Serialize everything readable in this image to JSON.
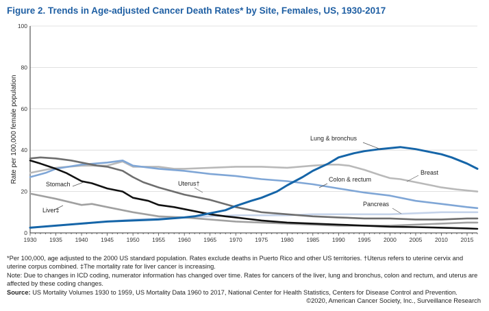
{
  "chart_data": {
    "type": "line",
    "title": "Figure 2. Trends in Age-adjusted Cancer Death Rates* by Site, Females, US, 1930-2017",
    "ylabel": "Rate per 100,000 female population",
    "xlabel": "",
    "ylim": [
      0,
      100
    ],
    "xlim": [
      1930,
      2017
    ],
    "y_ticks": [
      "0",
      "20",
      "40",
      "60",
      "80",
      "100"
    ],
    "x_ticks": [
      "1930",
      "1935",
      "1940",
      "1945",
      "1950",
      "1955",
      "1960",
      "1965",
      "1970",
      "1975",
      "1980",
      "1985",
      "1990",
      "1995",
      "2000",
      "2005",
      "2010",
      "2015"
    ],
    "grid": "horizontal",
    "colors": {
      "lung": "#1565a8",
      "breast": "#b9b9b9",
      "colon": "#7fa6d6",
      "pancreas": "#c5d3ea",
      "uterus": "#6e6e6e",
      "stomach": "#111111",
      "liver": "#a0a0a0",
      "gridline": "#d6d6d6",
      "title": "#1f5fa3"
    },
    "series": [
      {
        "name": "Lung & bronchus",
        "key": "lung",
        "x": [
          1930,
          1935,
          1940,
          1945,
          1950,
          1955,
          1960,
          1962,
          1965,
          1968,
          1970,
          1973,
          1975,
          1978,
          1980,
          1983,
          1985,
          1988,
          1990,
          1993,
          1995,
          1998,
          2000,
          2002,
          2005,
          2008,
          2010,
          2012,
          2015,
          2017
        ],
        "y": [
          2.5,
          3.5,
          4.5,
          5.5,
          6,
          6.5,
          7.5,
          8,
          9.5,
          11,
          13,
          15.5,
          17,
          20,
          23,
          27,
          30,
          33.5,
          36.5,
          38.5,
          39.5,
          40.5,
          41,
          41.5,
          40.5,
          39,
          38,
          36.5,
          33.5,
          31
        ]
      },
      {
        "name": "Breast",
        "key": "breast",
        "x": [
          1930,
          1932,
          1935,
          1940,
          1945,
          1948,
          1950,
          1955,
          1958,
          1960,
          1965,
          1970,
          1975,
          1980,
          1985,
          1988,
          1990,
          1992,
          1995,
          1998,
          2000,
          2002,
          2005,
          2008,
          2010,
          2013,
          2015,
          2017
        ],
        "y": [
          29,
          30,
          31.5,
          32.5,
          32.5,
          34.5,
          32,
          32,
          31,
          31,
          31.5,
          32,
          32,
          31.5,
          32.5,
          33,
          33,
          32.5,
          30.5,
          28,
          26.5,
          26,
          24.5,
          23,
          22,
          21,
          20.5,
          20
        ]
      },
      {
        "name": "Colon & rectum",
        "key": "colon",
        "x": [
          1930,
          1933,
          1935,
          1940,
          1945,
          1948,
          1950,
          1955,
          1960,
          1965,
          1970,
          1975,
          1980,
          1985,
          1990,
          1995,
          2000,
          2005,
          2010,
          2015,
          2017
        ],
        "y": [
          27,
          29,
          31,
          33,
          34,
          35,
          32.5,
          31,
          30,
          28.5,
          27.5,
          26,
          25,
          23.5,
          21.5,
          19.5,
          18,
          15.5,
          14,
          12.5,
          12
        ]
      },
      {
        "name": "Pancreas",
        "key": "pancreas",
        "x": [
          1930,
          1935,
          1940,
          1945,
          1950,
          1955,
          1960,
          1965,
          1970,
          1975,
          1980,
          1985,
          1990,
          1995,
          2000,
          2005,
          2010,
          2015,
          2017
        ],
        "y": [
          2.5,
          3.5,
          4.5,
          5.5,
          6.5,
          7,
          7.5,
          8,
          8.5,
          8.5,
          8.5,
          9,
          9,
          9,
          9,
          9.5,
          10,
          10,
          10
        ]
      },
      {
        "name": "Uterus",
        "key": "uterus",
        "x": [
          1930,
          1932,
          1935,
          1938,
          1940,
          1943,
          1945,
          1948,
          1950,
          1952,
          1955,
          1960,
          1965,
          1970,
          1975,
          1980,
          1985,
          1990,
          1995,
          2000,
          2005,
          2010,
          2015,
          2017
        ],
        "y": [
          36,
          36.5,
          36,
          35,
          34,
          32.5,
          32,
          30,
          27,
          24.5,
          22,
          18.5,
          16,
          12.5,
          10,
          9,
          8,
          7.5,
          7,
          7,
          6.5,
          6.5,
          7,
          7
        ]
      },
      {
        "name": "Stomach",
        "key": "stomach",
        "x": [
          1930,
          1932,
          1935,
          1937,
          1940,
          1942,
          1945,
          1948,
          1950,
          1953,
          1955,
          1958,
          1960,
          1963,
          1965,
          1968,
          1970,
          1975,
          1980,
          1985,
          1990,
          1995,
          2000,
          2005,
          2010,
          2015,
          2017
        ],
        "y": [
          35,
          33.5,
          31,
          29,
          25,
          24,
          21.5,
          20,
          17,
          15.5,
          13.5,
          12.5,
          11.5,
          10,
          9,
          8,
          7.5,
          6,
          5,
          4.5,
          4,
          3.5,
          3,
          2.8,
          2.5,
          2.2,
          2
        ]
      },
      {
        "name": "Liver",
        "key": "liver",
        "x": [
          1930,
          1932,
          1935,
          1940,
          1942,
          1945,
          1950,
          1955,
          1960,
          1965,
          1970,
          1975,
          1980,
          1985,
          1990,
          1995,
          2000,
          2005,
          2010,
          2015,
          2017
        ],
        "y": [
          19,
          18,
          16.5,
          13.5,
          14,
          12.5,
          10,
          8,
          7.5,
          6.5,
          5.5,
          5,
          4.5,
          4,
          3.5,
          3.5,
          3.5,
          4,
          4.5,
          5,
          5
        ]
      }
    ],
    "annotations": [
      {
        "key": "lung",
        "text": "Lung & bronchus"
      },
      {
        "key": "breast",
        "text": "Breast"
      },
      {
        "key": "colon",
        "text": "Colon & rectum"
      },
      {
        "key": "pancreas",
        "text": "Pancreas"
      },
      {
        "key": "uterus",
        "text": "Uterus†"
      },
      {
        "key": "stomach",
        "text": "Stomach"
      },
      {
        "key": "liver",
        "text": "Liver‡"
      }
    ]
  },
  "notes": {
    "line1": "*Per 100,000, age adjusted to the 2000 US standard population. Rates exclude deaths in Puerto Rico and other US territories. †Uterus refers to uterine cervix and uterine corpus combined. ‡The mortality rate for liver cancer is increasing.",
    "line2": "Note: Due to changes in ICD coding, numerator information has changed over time. Rates for cancers of the liver, lung and bronchus, colon and rectum, and uterus are affected by these coding changes.",
    "source_label": "Source:",
    "source_text": " US Mortality Volumes 1930 to 1959, US Mortality Data 1960 to 2017, National Center for Health Statistics, Centers for Disease Control and Prevention.",
    "copyright": "©2020, American Cancer Society, Inc., Surveillance Research"
  }
}
